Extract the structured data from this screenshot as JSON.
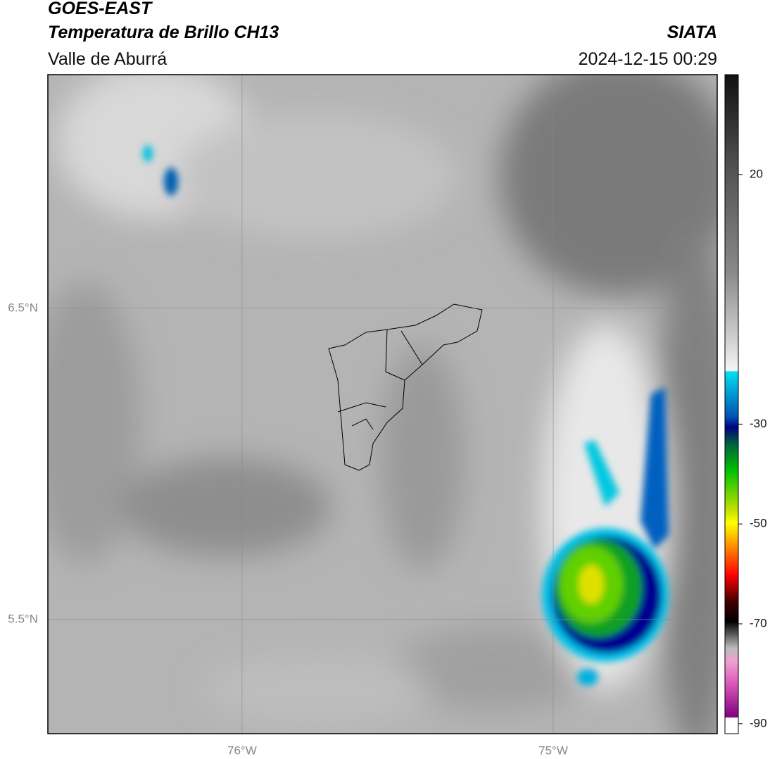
{
  "header": {
    "title": "GOES-EAST",
    "subtitle": "Temperatura de Brillo CH13",
    "region": "Valle de Aburrá",
    "source": "SIATA",
    "datetime": "2024-12-15 00:29"
  },
  "map": {
    "xlim": [
      -76.624,
      -74.473
    ],
    "ylim": [
      5.133,
      7.251
    ],
    "xticks": [
      {
        "value": -76,
        "label": "76°W"
      },
      {
        "value": -75,
        "label": "75°W"
      }
    ],
    "yticks": [
      {
        "value": 6.5,
        "label": "6.5°N"
      },
      {
        "value": 5.5,
        "label": "5.5°N"
      }
    ]
  },
  "colorbar": {
    "lim": [
      -92,
      40
    ],
    "ticks": [
      20,
      -30,
      -50,
      -70,
      -90
    ]
  }
}
